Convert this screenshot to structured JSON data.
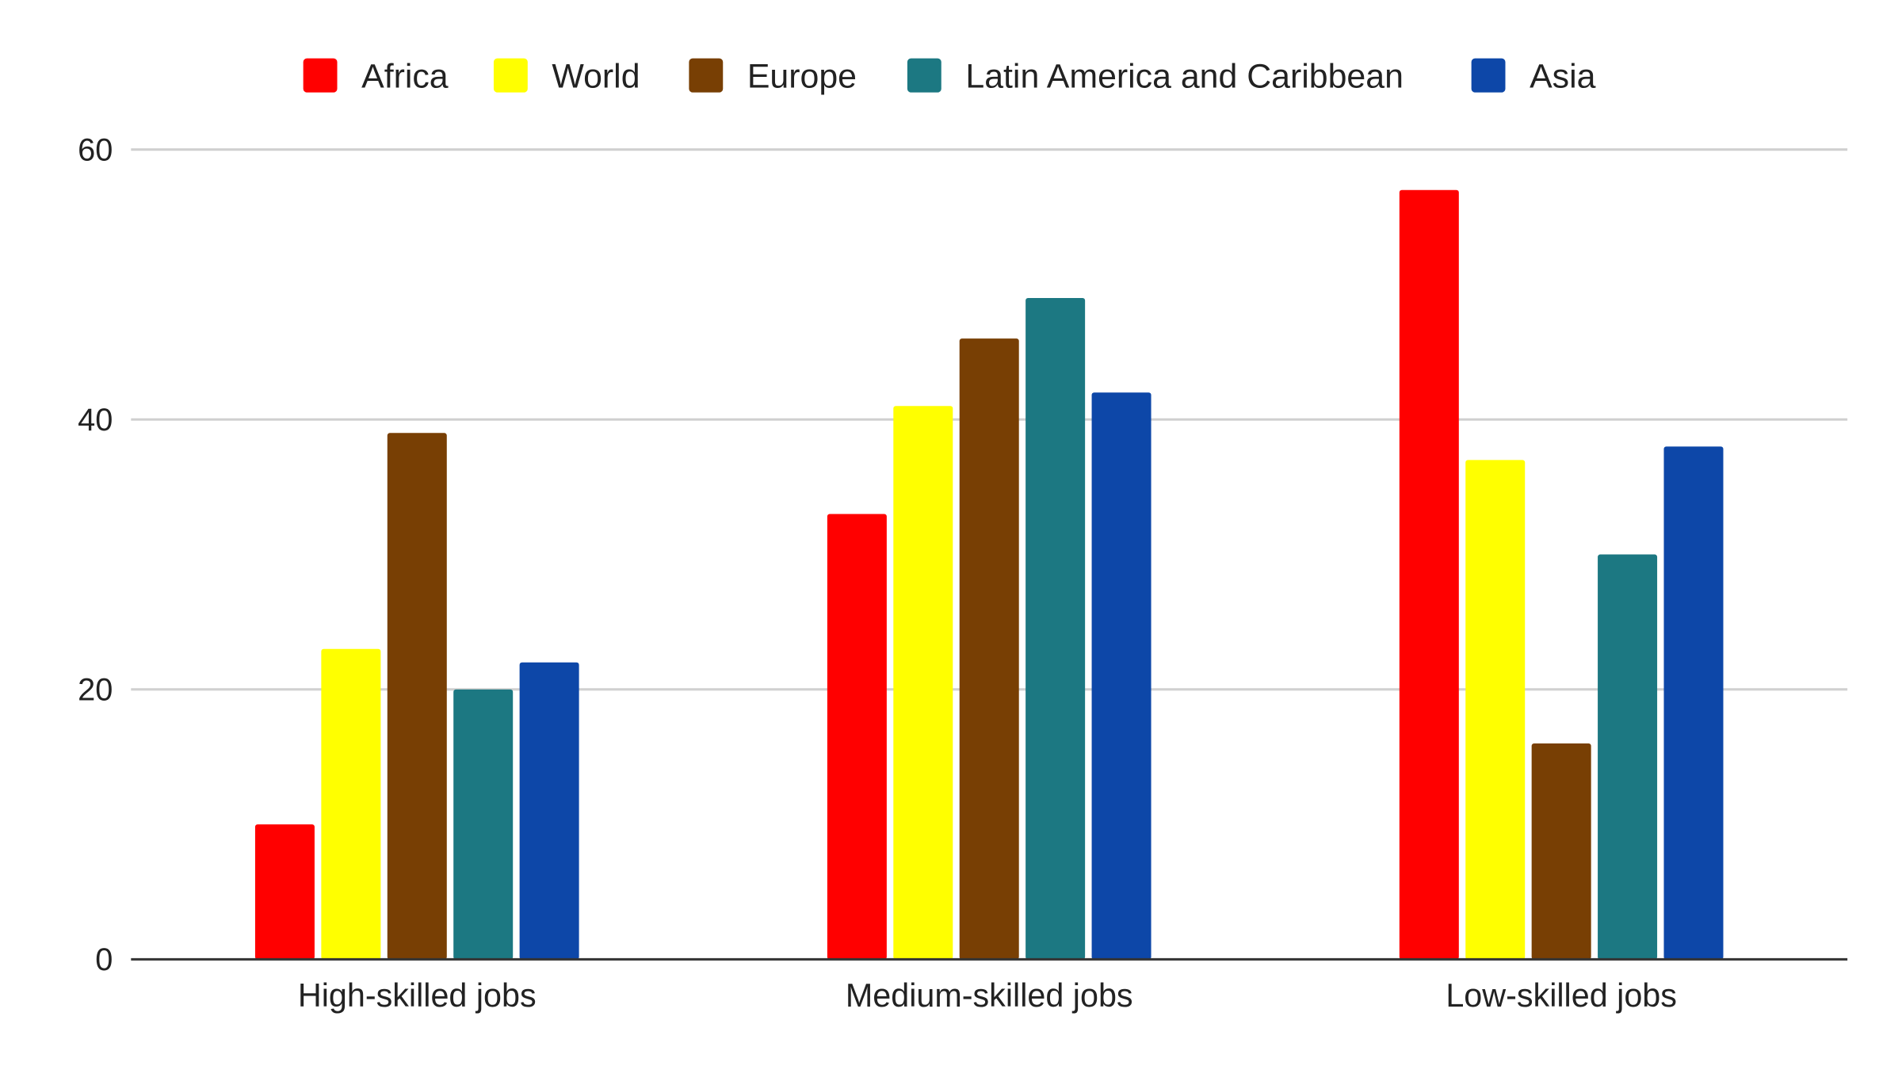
{
  "chart_data": {
    "type": "bar",
    "title": "",
    "xlabel": "",
    "ylabel": "",
    "categories": [
      "High-skilled jobs",
      "Medium-skilled jobs",
      "Low-skilled jobs"
    ],
    "series": [
      {
        "name": "Africa",
        "color": "#ff0000",
        "values": [
          10,
          33,
          57
        ]
      },
      {
        "name": "World",
        "color": "#ffff00",
        "values": [
          23,
          41,
          37
        ]
      },
      {
        "name": "Europe",
        "color": "#783f04",
        "values": [
          39,
          46,
          16
        ]
      },
      {
        "name": "Latin America and Caribbean",
        "color": "#1c7882",
        "values": [
          20,
          49,
          30
        ]
      },
      {
        "name": "Asia",
        "color": "#0d47a8",
        "values": [
          22,
          42,
          38
        ]
      }
    ],
    "ylim": [
      0,
      60
    ],
    "yticks": [
      "0",
      "20",
      "40",
      "60"
    ],
    "grid": true,
    "legend_position": "top-center"
  }
}
